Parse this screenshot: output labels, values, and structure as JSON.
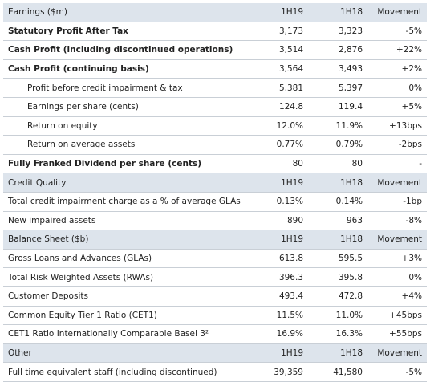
{
  "sections": [
    {
      "header": [
        "Earnings ($m)",
        "1H19",
        "1H18",
        "Movement"
      ],
      "rows": [
        [
          "Statutory Profit After Tax",
          "3,173",
          "3,323",
          "-5%"
        ],
        [
          "Cash Profit  (including discontinued operations)",
          "3,514",
          "2,876",
          "+22%"
        ],
        [
          "Cash Profit (continuing basis)",
          "3,564",
          "3,493",
          "+2%"
        ],
        [
          "Profit before credit impairment & tax",
          "5,381",
          "5,397",
          "0%"
        ],
        [
          "Earnings per share (cents)",
          "124.8",
          "119.4",
          "+5%"
        ],
        [
          "Return on equity",
          "12.0%",
          "11.9%",
          "+13bps"
        ],
        [
          "Return on average assets",
          "0.77%",
          "0.79%",
          "-2bps"
        ],
        [
          "Fully Franked Dividend per share (cents)",
          "80",
          "80",
          "-"
        ]
      ]
    },
    {
      "header": [
        "Credit Quality",
        "1H19",
        "1H18",
        "Movement"
      ],
      "rows": [
        [
          "Total credit impairment charge as a % of average GLAs",
          "0.13%",
          "0.14%",
          "-1bp"
        ],
        [
          "New impaired assets",
          "890",
          "963",
          "-8%"
        ]
      ]
    },
    {
      "header": [
        "Balance Sheet ($b)",
        "1H19",
        "1H18",
        "Movement"
      ],
      "rows": [
        [
          "Gross Loans and Advances (GLAs)",
          "613.8",
          "595.5",
          "+3%"
        ],
        [
          "Total Risk Weighted Assets (RWAs)",
          "396.3",
          "395.8",
          "0%"
        ],
        [
          "Customer Deposits",
          "493.4",
          "472.8",
          "+4%"
        ],
        [
          "Common Equity Tier 1 Ratio (CET1)",
          "11.5%",
          "11.0%",
          "+45bps"
        ],
        [
          "CET1 Ratio Internationally Comparable Basel 3²",
          "16.9%",
          "16.3%",
          "+55bps"
        ]
      ]
    },
    {
      "header": [
        "Other",
        "1H19",
        "1H18",
        "Movement"
      ],
      "rows": [
        [
          "Full time equivalent staff (including discontinued)",
          "39,359",
          "41,580",
          "-5%"
        ]
      ]
    }
  ]
}
